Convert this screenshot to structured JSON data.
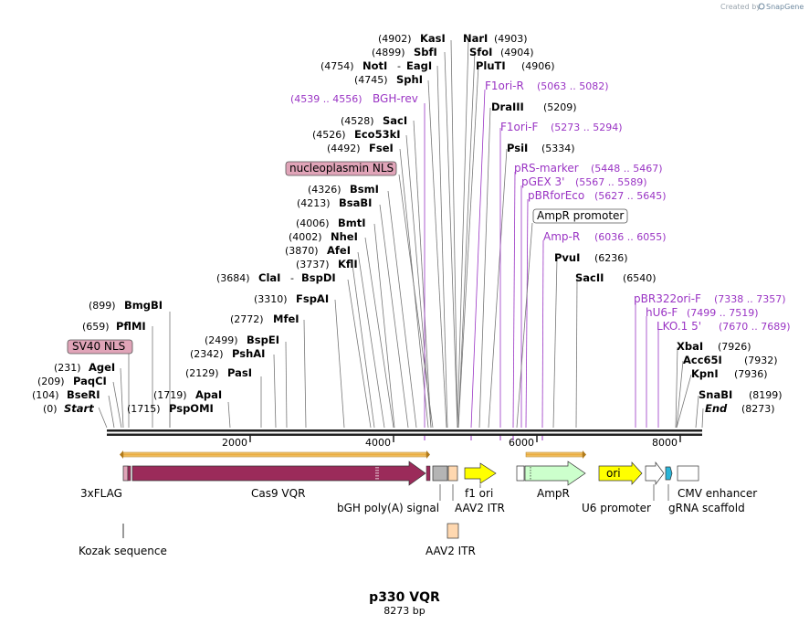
{
  "credit": {
    "prefix": "Created by",
    "brand": "SnapGene"
  },
  "plasmid": {
    "name": "p330 VQR",
    "length": "8273 bp"
  },
  "ruler": {
    "ticks": [
      "2000",
      "4000",
      "6000",
      "8000"
    ]
  },
  "sites": {
    "start": {
      "pos": "(0)",
      "name": "Start"
    },
    "end": {
      "pos": "(8273)",
      "name": "End"
    },
    "bseri": {
      "pos": "(104)",
      "name": "BseRI"
    },
    "paqci": {
      "pos": "(209)",
      "name": "PaqCI"
    },
    "agei": {
      "pos": "(231)",
      "name": "AgeI"
    },
    "pflmi": {
      "pos": "(659)",
      "name": "PflMI"
    },
    "bmgbi": {
      "pos": "(899)",
      "name": "BmgBI"
    },
    "pspomi": {
      "pos": "(1715)",
      "name": "PspOMI"
    },
    "apai": {
      "pos": "(1719)",
      "name": "ApaI"
    },
    "pasi": {
      "pos": "(2129)",
      "name": "PasI"
    },
    "pshai": {
      "pos": "(2342)",
      "name": "PshAI"
    },
    "bspei": {
      "pos": "(2499)",
      "name": "BspEI"
    },
    "mfei": {
      "pos": "(2772)",
      "name": "MfeI"
    },
    "fspai": {
      "pos": "(3310)",
      "name": "FspAI"
    },
    "clai": {
      "pos": "(3684)",
      "name": "ClaI",
      "name2": "BspDI",
      "dash": "-"
    },
    "kfli": {
      "pos": "(3737)",
      "name": "KflI"
    },
    "afei": {
      "pos": "(3870)",
      "name": "AfeI"
    },
    "nhei": {
      "pos": "(4002)",
      "name": "NheI"
    },
    "bmti": {
      "pos": "(4006)",
      "name": "BmtI"
    },
    "bsabi": {
      "pos": "(4213)",
      "name": "BsaBI"
    },
    "bsmi": {
      "pos": "(4326)",
      "name": "BsmI"
    },
    "fsei": {
      "pos": "(4492)",
      "name": "FseI"
    },
    "eco53ki": {
      "pos": "(4526)",
      "name": "Eco53kI"
    },
    "saci": {
      "pos": "(4528)",
      "name": "SacI"
    },
    "sphi": {
      "pos": "(4745)",
      "name": "SphI"
    },
    "noti": {
      "pos": "(4754)",
      "name": "NotI",
      "name2": "EagI",
      "dash": "-"
    },
    "sbfi": {
      "pos": "(4899)",
      "name": "SbfI"
    },
    "kasi": {
      "pos": "(4902)",
      "name": "KasI"
    },
    "nari": {
      "pos": "(4903)",
      "name": "NarI"
    },
    "sfoi": {
      "pos": "(4904)",
      "name": "SfoI"
    },
    "pluti": {
      "pos": "(4906)",
      "name": "PluTI"
    },
    "draiii": {
      "pos": "(5209)",
      "name": "DraIII"
    },
    "psii": {
      "pos": "(5334)",
      "name": "PsiI"
    },
    "pvui": {
      "pos": "(6236)",
      "name": "PvuI"
    },
    "sacii": {
      "pos": "(6540)",
      "name": "SacII"
    },
    "xbai": {
      "pos": "(7926)",
      "name": "XbaI"
    },
    "acc65i": {
      "pos": "(7932)",
      "name": "Acc65I"
    },
    "kpni": {
      "pos": "(7936)",
      "name": "KpnI"
    },
    "snabi": {
      "pos": "(8199)",
      "name": "SnaBI"
    }
  },
  "primers": {
    "bghrev": {
      "name": "BGH-rev",
      "range": "(4539 .. 4556)"
    },
    "f1orir": {
      "name": "F1ori-R",
      "range": "(5063 .. 5082)"
    },
    "f1orif": {
      "name": "F1ori-F",
      "range": "(5273 .. 5294)"
    },
    "prsmarker": {
      "name": "pRS-marker",
      "range": "(5448 .. 5467)"
    },
    "pgex3": {
      "name": "pGEX 3'",
      "range": "(5567 .. 5589)"
    },
    "pbrforeco": {
      "name": "pBRforEco",
      "range": "(5627 .. 5645)"
    },
    "ampr": {
      "name": "Amp-R",
      "range": "(6036 .. 6055)"
    },
    "pbr322orif": {
      "name": "pBR322ori-F",
      "range": "(7338 .. 7357)"
    },
    "hu6f": {
      "name": "hU6-F",
      "range": "(7499 .. 7519)"
    },
    "lko15": {
      "name": "LKO.1 5'",
      "range": "(7670 .. 7689)"
    }
  },
  "boxed_features": {
    "sv40nls": "SV40 NLS",
    "nucleoplasmin": "nucleoplasmin NLS",
    "amprpromoter": "AmpR promoter"
  },
  "features": {
    "flag": "3xFLAG",
    "cas9": "Cas9 VQR",
    "kozak": "Kozak sequence",
    "bgh": "bGH poly(A) signal",
    "aav2itr_top": "AAV2 ITR",
    "aav2itr_bottom": "AAV2 ITR",
    "f1ori": "f1 ori",
    "ampr": "AmpR",
    "ori": "ori",
    "u6": "U6 promoter",
    "cmv": "CMV enhancer",
    "grna": "gRNA scaffold"
  },
  "colors": {
    "cas9": "#9b2b5a",
    "f1ori": "#ffff00",
    "ampr": "#ccffcc",
    "aav2itr": "#ffd8b0",
    "bgh": "#b4b4b4",
    "nls": "#e0a4b8",
    "grna": "#2bb5d8",
    "primer": "#9a34c4",
    "orf_bar": "#e8b04a"
  }
}
